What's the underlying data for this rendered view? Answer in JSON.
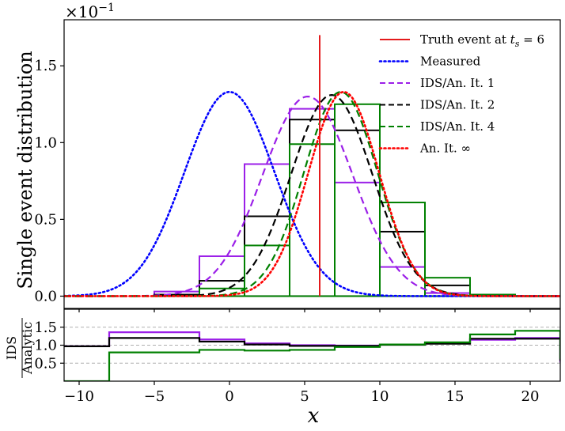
{
  "chart_data": [
    {
      "type": "line",
      "panel": "main",
      "ylabel": "Single event distribution",
      "offset_label": "×10^−1",
      "offset_base": "×10",
      "offset_exp": "−1",
      "xlim": [
        -11,
        22
      ],
      "ylim": [
        -0.08,
        1.8
      ],
      "xticks": [
        -10,
        -5,
        0,
        5,
        10,
        15,
        20
      ],
      "xtick_labels": [
        "−10",
        "−5",
        "0",
        "5",
        "10",
        "15",
        "20"
      ],
      "yticks": [
        0,
        0.5,
        1.0,
        1.5
      ],
      "ytick_labels": [
        "0.0",
        "0.5",
        "1.0",
        "1.5"
      ],
      "truth": {
        "label": "Truth event at t_s = 6",
        "label_pre": "Truth event at ",
        "label_sym": "t",
        "label_sub": "s",
        "label_post": " = 6",
        "x": 6,
        "y_range": [
          0,
          1.7
        ],
        "color": "#e31a1c"
      },
      "curves": [
        {
          "name": "Measured",
          "mu": 0,
          "sigma": 3.0,
          "peak": 1.33,
          "color": "#0000ff",
          "style": "dotted"
        },
        {
          "name": "IDS/An. It. 1",
          "mu": 5.2,
          "sigma": 3.0,
          "peak": 1.3,
          "color": "#9b1fe8",
          "style": "dashed"
        },
        {
          "name": "IDS/An. It. 2",
          "mu": 6.8,
          "sigma": 2.7,
          "peak": 1.31,
          "color": "#000000",
          "style": "dashed"
        },
        {
          "name": "IDS/An. It. 4",
          "mu": 7.4,
          "sigma": 2.45,
          "peak": 1.33,
          "color": "#008000",
          "style": "dashed"
        },
        {
          "name": "An. It. ∞",
          "mu": 7.6,
          "sigma": 2.35,
          "peak": 1.33,
          "color": "#ff0000",
          "style": "dotted"
        }
      ],
      "histograms": [
        {
          "name": "IDS It. 1",
          "color": "#9b1fe8",
          "bins": [
            -8,
            -5,
            -2,
            1,
            4,
            7,
            10,
            13,
            16,
            19
          ],
          "values": [
            0.0,
            0.03,
            0.26,
            0.86,
            1.22,
            0.74,
            0.19,
            0.02,
            0.0
          ]
        },
        {
          "name": "IDS It. 2",
          "color": "#000000",
          "bins": [
            -8,
            -5,
            -2,
            1,
            4,
            7,
            10,
            13,
            16,
            19
          ],
          "values": [
            0.0,
            0.01,
            0.1,
            0.52,
            1.15,
            1.08,
            0.42,
            0.07,
            0.01
          ]
        },
        {
          "name": "IDS It. 4",
          "color": "#008000",
          "bins": [
            -8,
            -5,
            -2,
            1,
            4,
            7,
            10,
            13,
            16,
            19
          ],
          "values": [
            0.0,
            0.0,
            0.05,
            0.33,
            0.99,
            1.25,
            0.61,
            0.12,
            0.01
          ]
        }
      ],
      "legend": [
        "Truth event at t_s = 6",
        "Measured",
        "IDS/An. It. 1",
        "IDS/An. It. 2",
        "IDS/An. It. 4",
        "An. It. ∞"
      ],
      "legend_position": "top-right"
    },
    {
      "type": "line",
      "panel": "ratio",
      "ylabel": "IDS / Analytic",
      "ylabel_num": "IDS",
      "ylabel_den": "Analytic",
      "xlabel": "x",
      "xlim": [
        -11,
        22
      ],
      "ylim": [
        0.0,
        2.0
      ],
      "yticks": [
        0.5,
        1.0,
        1.5
      ],
      "ytick_labels": [
        "0.5",
        "1.0",
        "1.5"
      ],
      "gridlines": [
        0.5,
        1.0,
        1.5
      ],
      "edges": [
        -11,
        -8,
        -2,
        1,
        4,
        7,
        10,
        13,
        16,
        19,
        22
      ],
      "series": [
        {
          "name": "It. 1",
          "color": "#9b1fe8",
          "values": [
            0.97,
            1.36,
            1.16,
            1.05,
            1.0,
            0.99,
            1.02,
            1.05,
            1.15,
            1.2,
            0.52
          ]
        },
        {
          "name": "It. 2",
          "color": "#000000",
          "values": [
            0.97,
            1.2,
            1.1,
            1.02,
            0.98,
            0.98,
            1.01,
            1.04,
            1.18,
            1.18,
            0.57
          ]
        },
        {
          "name": "It. 4",
          "color": "#008000",
          "values": [
            0.0,
            0.8,
            0.87,
            0.85,
            0.87,
            0.95,
            1.02,
            1.08,
            1.3,
            1.4,
            0.62
          ]
        }
      ]
    }
  ]
}
